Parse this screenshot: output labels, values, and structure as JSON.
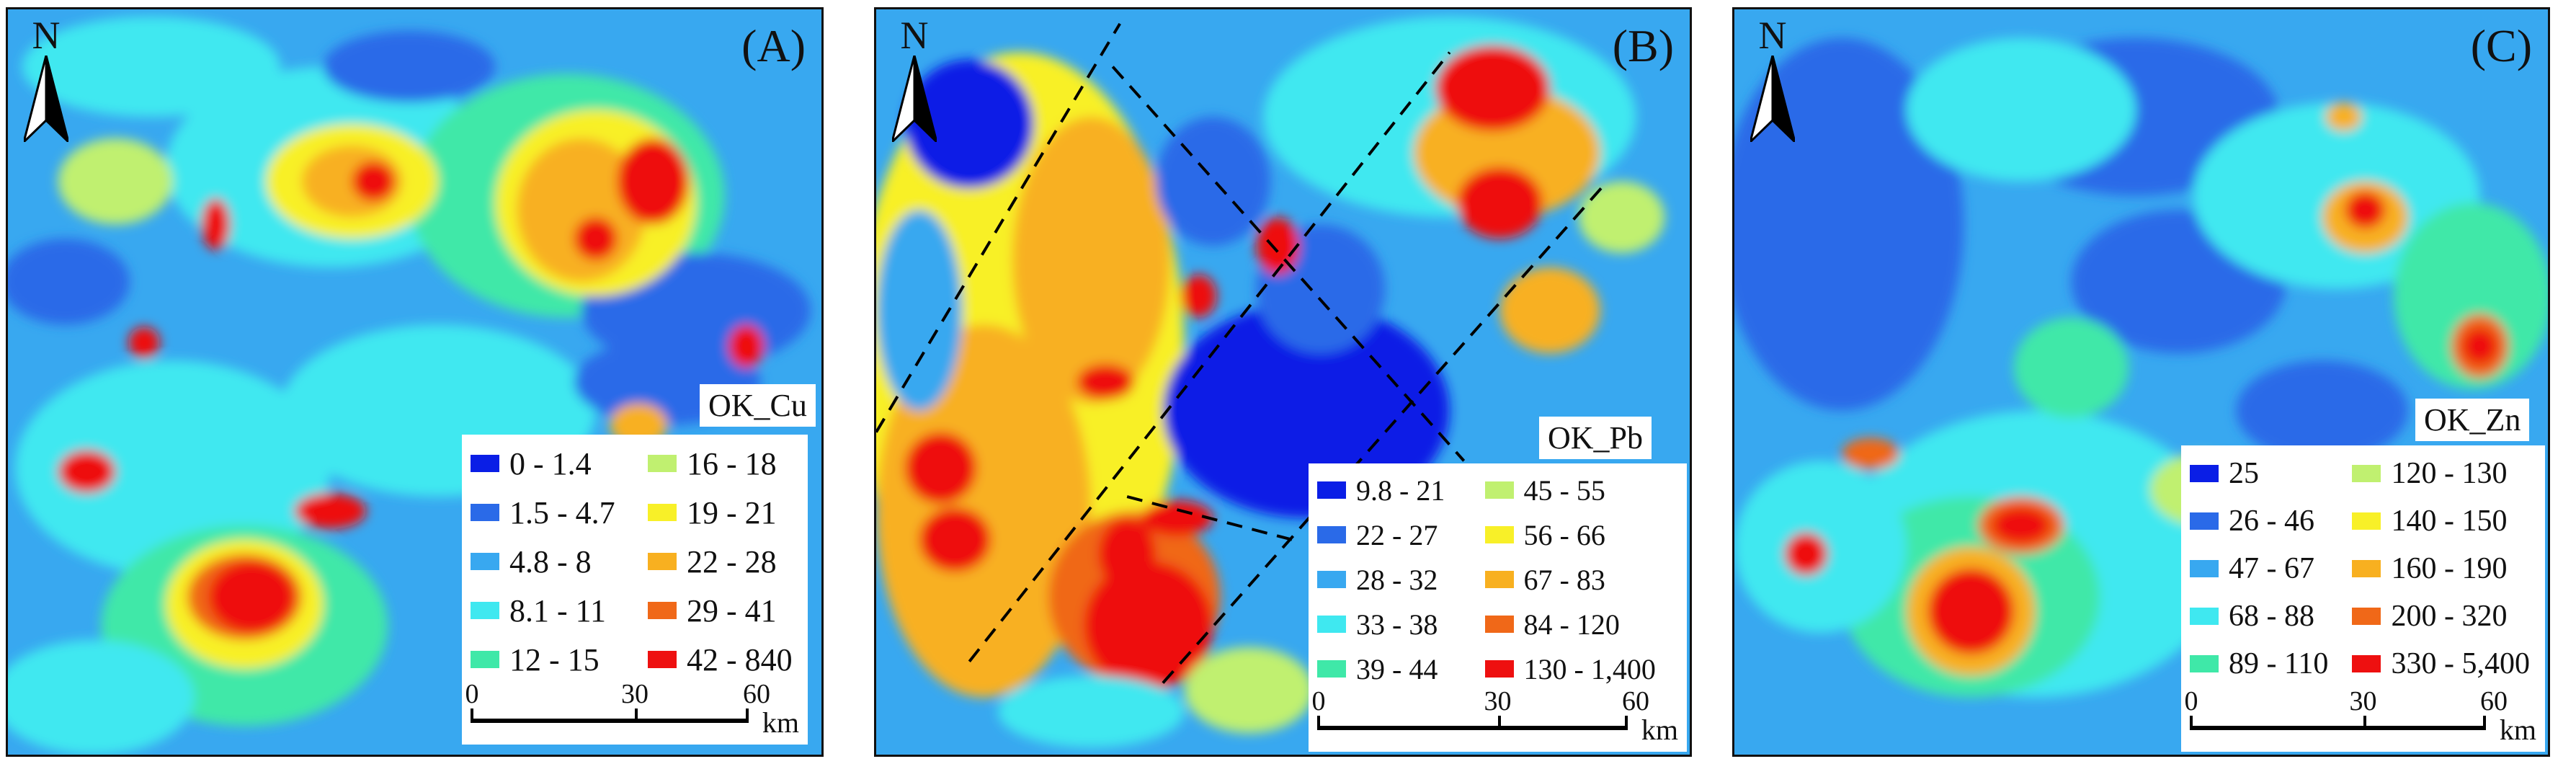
{
  "panels": [
    {
      "id": "a",
      "label": "(A)",
      "north": "N",
      "legend_title": "OK_Cu",
      "legend": [
        {
          "label": "0 - 1.4",
          "color": "#0a1ee6"
        },
        {
          "label": "1.5 - 4.7",
          "color": "#2a6ae8"
        },
        {
          "label": "4.8 - 8",
          "color": "#38a8f0"
        },
        {
          "label": "8.1 - 11",
          "color": "#3fe8f0"
        },
        {
          "label": "12 - 15",
          "color": "#3fe8a8"
        },
        {
          "label": "16 - 18",
          "color": "#c0f070"
        },
        {
          "label": "19 - 21",
          "color": "#f8f028"
        },
        {
          "label": "22 - 28",
          "color": "#f8b020"
        },
        {
          "label": "29 - 41",
          "color": "#f06818"
        },
        {
          "label": "42 - 840",
          "color": "#ee1010"
        }
      ],
      "scale": {
        "ticks": [
          "0",
          "30",
          "60"
        ],
        "unit": "km"
      }
    },
    {
      "id": "b",
      "label": "(B)",
      "north": "N",
      "legend_title": "OK_Pb",
      "legend": [
        {
          "label": "9.8 - 21",
          "color": "#0a1ee6"
        },
        {
          "label": "22 - 27",
          "color": "#2a6ae8"
        },
        {
          "label": "28 - 32",
          "color": "#38a8f0"
        },
        {
          "label": "33 - 38",
          "color": "#3fe8f0"
        },
        {
          "label": "39 - 44",
          "color": "#3fe8a8"
        },
        {
          "label": "45 - 55",
          "color": "#c0f070"
        },
        {
          "label": "56 - 66",
          "color": "#f8f028"
        },
        {
          "label": "67 - 83",
          "color": "#f8b020"
        },
        {
          "label": "84 - 120",
          "color": "#f06818"
        },
        {
          "label": "130 - 1,400",
          "color": "#ee1010"
        }
      ],
      "scale": {
        "ticks": [
          "0",
          "30",
          "60"
        ],
        "unit": "km"
      }
    },
    {
      "id": "c",
      "label": "(C)",
      "north": "N",
      "legend_title": "OK_Zn",
      "legend": [
        {
          "label": "25",
          "color": "#0a1ee6"
        },
        {
          "label": "26 - 46",
          "color": "#2a6ae8"
        },
        {
          "label": "47 - 67",
          "color": "#38a8f0"
        },
        {
          "label": "68 - 88",
          "color": "#3fe8f0"
        },
        {
          "label": "89 - 110",
          "color": "#3fe8a8"
        },
        {
          "label": "120 - 130",
          "color": "#c0f070"
        },
        {
          "label": "140 - 150",
          "color": "#f8f028"
        },
        {
          "label": "160 - 190",
          "color": "#f8b020"
        },
        {
          "label": "200 - 320",
          "color": "#f06818"
        },
        {
          "label": "330 - 5,400",
          "color": "#ee1010"
        }
      ],
      "scale": {
        "ticks": [
          "0",
          "30",
          "60"
        ],
        "unit": "km"
      }
    }
  ]
}
